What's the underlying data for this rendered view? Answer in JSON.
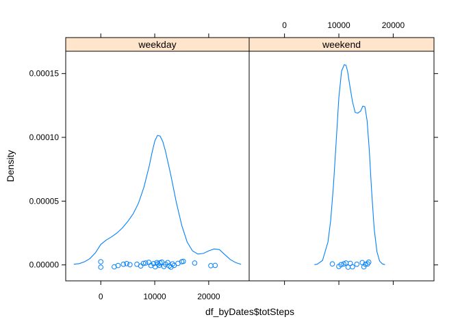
{
  "chart_data": {
    "type": "line",
    "xlabel": "df_byDates$totSteps",
    "ylabel": "Density",
    "xlim": [
      -6500,
      27500
    ],
    "ylim": [
      -1.25e-05,
      0.0001675
    ],
    "x_ticks": [
      0,
      10000,
      20000
    ],
    "x_tick_labels": [
      "0",
      "10000",
      "20000"
    ],
    "y_ticks": [
      0,
      5e-05,
      0.0001,
      0.00015
    ],
    "y_tick_labels": [
      "0.00000",
      "0.00005",
      "0.00010",
      "0.00015"
    ],
    "series_color": "#0080ff",
    "strip_color": "#ffe5cc",
    "panels": [
      {
        "name": "weekday",
        "density": {
          "x": [
            -5000,
            -4000,
            -3000,
            -2000,
            -1000,
            0,
            1000,
            2000,
            3000,
            4000,
            5000,
            6000,
            7000,
            8000,
            9000,
            9500,
            10000,
            10500,
            11000,
            11500,
            12000,
            13000,
            14000,
            15000,
            16000,
            17000,
            18000,
            19000,
            20000,
            21000,
            22000,
            23000,
            24000,
            25000,
            26000
          ],
          "y": [
            5e-07,
            1e-06,
            2.5e-06,
            5e-06,
            9.5e-06,
            1.6e-05,
            1.95e-05,
            2.2e-05,
            2.5e-05,
            2.9e-05,
            3.4e-05,
            4e-05,
            4.85e-05,
            6.1e-05,
            7.8e-05,
            8.8e-05,
            9.7e-05,
            0.0001015,
            0.000101,
            9.65e-05,
            8.9e-05,
            7e-05,
            4.9e-05,
            3.1e-05,
            1.8e-05,
            1.1e-05,
            8.5e-06,
            9e-06,
            1.1e-05,
            1.25e-05,
            1.2e-05,
            8e-06,
            4.2e-06,
            1.8e-06,
            4e-07
          ]
        },
        "points": [
          {
            "x": 0,
            "y": 2.5e-06
          },
          {
            "x": 0,
            "y": -1.8e-06
          },
          {
            "x": 2500,
            "y": -1.5e-06
          },
          {
            "x": 3200,
            "y": -5e-07
          },
          {
            "x": 4200,
            "y": 5e-07
          },
          {
            "x": 4800,
            "y": 1e-06
          },
          {
            "x": 5400,
            "y": 2e-07
          },
          {
            "x": 6700,
            "y": 5e-07
          },
          {
            "x": 7400,
            "y": -8e-07
          },
          {
            "x": 7900,
            "y": 1.2e-06
          },
          {
            "x": 8300,
            "y": 1.5e-06
          },
          {
            "x": 8900,
            "y": 2e-06
          },
          {
            "x": 9300,
            "y": -5e-07
          },
          {
            "x": 9800,
            "y": 1e-06
          },
          {
            "x": 10100,
            "y": -1.5e-06
          },
          {
            "x": 10400,
            "y": 1.8e-06
          },
          {
            "x": 10600,
            "y": 8e-07
          },
          {
            "x": 10800,
            "y": -4e-07
          },
          {
            "x": 11000,
            "y": 1.6e-06
          },
          {
            "x": 11300,
            "y": 2.2e-06
          },
          {
            "x": 11700,
            "y": -1.2e-06
          },
          {
            "x": 12000,
            "y": 5e-07
          },
          {
            "x": 12400,
            "y": 1.8e-06
          },
          {
            "x": 12700,
            "y": -8e-07
          },
          {
            "x": 13000,
            "y": -1.8e-06
          },
          {
            "x": 13300,
            "y": 8e-07
          },
          {
            "x": 13600,
            "y": -4e-07
          },
          {
            "x": 14300,
            "y": 1.2e-06
          },
          {
            "x": 15000,
            "y": 2.5e-06
          },
          {
            "x": 15300,
            "y": 2.8e-06
          },
          {
            "x": 17400,
            "y": 1.5e-06
          },
          {
            "x": 20400,
            "y": -6e-07
          },
          {
            "x": 21200,
            "y": -4e-07
          }
        ]
      },
      {
        "name": "weekend",
        "density": {
          "x": [
            5500,
            6000,
            7000,
            8000,
            8500,
            9000,
            9500,
            10000,
            10500,
            11000,
            11300,
            11600,
            12000,
            12500,
            13000,
            13500,
            14000,
            14400,
            14800,
            15200,
            15600,
            16000,
            16500,
            17000,
            17500,
            18000,
            18500
          ],
          "y": [
            2e-07,
            5e-07,
            3.5e-06,
            1.8e-05,
            3.5e-05,
            6.2e-05,
            9.65e-05,
            0.000131,
            0.000152,
            0.000157,
            0.0001565,
            0.000152,
            0.000141,
            0.000128,
            0.0001195,
            0.000119,
            0.0001205,
            0.0001245,
            0.000124,
            0.000113,
            9e-05,
            5.95e-05,
            2.85e-05,
            1.05e-05,
            3e-06,
            8e-07,
            2e-07
          ]
        },
        "points": [
          {
            "x": 8800,
            "y": 8e-07
          },
          {
            "x": 10000,
            "y": -1.2e-06
          },
          {
            "x": 10400,
            "y": 2e-07
          },
          {
            "x": 10900,
            "y": 8e-07
          },
          {
            "x": 11300,
            "y": 1.5e-06
          },
          {
            "x": 11700,
            "y": -1.8e-06
          },
          {
            "x": 12100,
            "y": 1.2e-06
          },
          {
            "x": 12500,
            "y": -1.5e-06
          },
          {
            "x": 13300,
            "y": 5e-07
          },
          {
            "x": 14300,
            "y": 1.8e-06
          },
          {
            "x": 14600,
            "y": -1.5e-06
          },
          {
            "x": 14900,
            "y": 5e-07
          },
          {
            "x": 15300,
            "y": 8e-07
          },
          {
            "x": 15500,
            "y": 2.2e-06
          }
        ]
      }
    ]
  }
}
